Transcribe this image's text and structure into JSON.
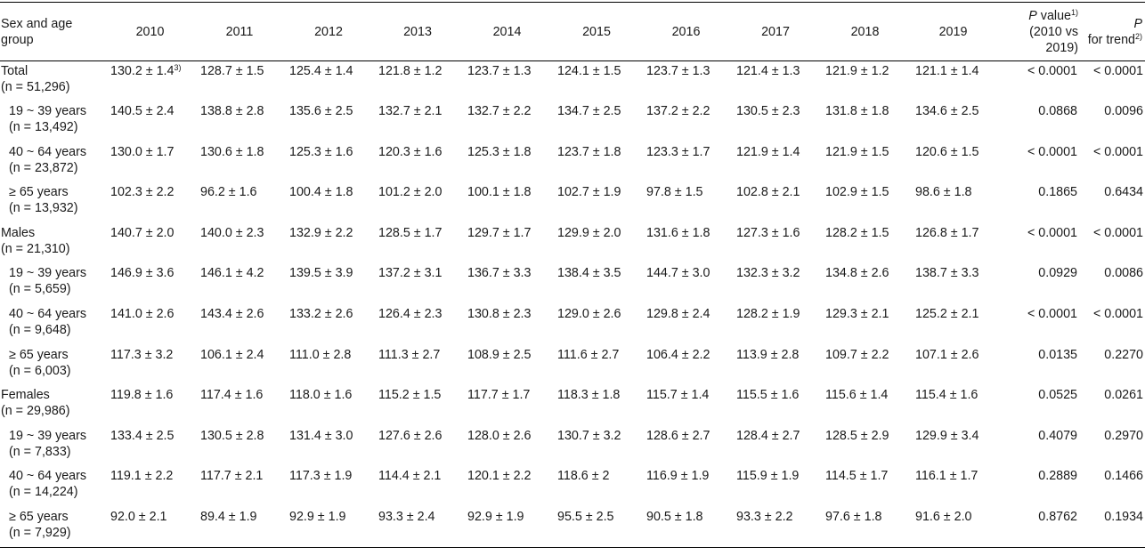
{
  "header": {
    "group_label": "Sex and age group",
    "years": [
      "2010",
      "2011",
      "2012",
      "2013",
      "2014",
      "2015",
      "2016",
      "2017",
      "2018",
      "2019"
    ],
    "pvalue_p": "P",
    "pvalue_text": " value",
    "pvalue_sup": "1)",
    "pvalue_range": "(2010 vs 2019)",
    "trend_p": "P",
    "trend_text": "for trend",
    "trend_sup": "2)"
  },
  "footnote_marker": "3)",
  "rows": [
    {
      "label": "Total",
      "n": "(n = 51,296)",
      "sub": false,
      "values": [
        "130.2 ± 1.4",
        "128.7 ± 1.5",
        "125.4 ± 1.4",
        "121.8 ± 1.2",
        "123.7 ± 1.3",
        "124.1 ± 1.5",
        "123.7 ± 1.3",
        "121.4 ± 1.3",
        "121.9 ± 1.2",
        "121.1 ± 1.4"
      ],
      "p_value": "< 0.0001",
      "p_trend": "< 0.0001"
    },
    {
      "label": "19 ~ 39 years",
      "n": "(n = 13,492)",
      "sub": true,
      "values": [
        "140.5 ± 2.4",
        "138.8 ± 2.8",
        "135.6 ± 2.5",
        "132.7 ± 2.1",
        "132.7 ± 2.2",
        "134.7 ± 2.5",
        "137.2 ± 2.2",
        "130.5 ± 2.3",
        "131.8 ± 1.8",
        "134.6 ± 2.5"
      ],
      "p_value": "0.0868",
      "p_trend": "0.0096"
    },
    {
      "label": "40 ~ 64 years",
      "n": "(n = 23,872)",
      "sub": true,
      "values": [
        "130.0 ± 1.7",
        "130.6 ± 1.8",
        "125.3 ± 1.6",
        "120.3 ± 1.6",
        "125.3 ± 1.8",
        "123.7 ± 1.8",
        "123.3 ± 1.7",
        "121.9 ± 1.4",
        "121.9 ± 1.5",
        "120.6 ± 1.5"
      ],
      "p_value": "< 0.0001",
      "p_trend": "< 0.0001"
    },
    {
      "label": "≥ 65 years",
      "n": "(n = 13,932)",
      "sub": true,
      "values": [
        "102.3 ± 2.2",
        "96.2 ± 1.6",
        "100.4 ± 1.8",
        "101.2 ± 2.0",
        "100.1 ± 1.8",
        "102.7 ± 1.9",
        "97.8 ± 1.5",
        "102.8 ± 2.1",
        "102.9 ± 1.5",
        "98.6 ± 1.8"
      ],
      "p_value": "0.1865",
      "p_trend": "0.6434"
    },
    {
      "label": "Males",
      "n": "(n = 21,310)",
      "sub": false,
      "values": [
        "140.7 ± 2.0",
        "140.0 ± 2.3",
        "132.9 ± 2.2",
        "128.5 ± 1.7",
        "129.7 ± 1.7",
        "129.9 ± 2.0",
        "131.6 ± 1.8",
        "127.3 ± 1.6",
        "128.2 ± 1.5",
        "126.8 ± 1.7"
      ],
      "p_value": "< 0.0001",
      "p_trend": "< 0.0001"
    },
    {
      "label": "19 ~ 39 years",
      "n": "(n = 5,659)",
      "sub": true,
      "values": [
        "146.9 ± 3.6",
        "146.1 ± 4.2",
        "139.5 ± 3.9",
        "137.2 ± 3.1",
        "136.7 ± 3.3",
        "138.4 ± 3.5",
        "144.7 ± 3.0",
        "132.3 ± 3.2",
        "134.8 ± 2.6",
        "138.7 ± 3.3"
      ],
      "p_value": "0.0929",
      "p_trend": "0.0086"
    },
    {
      "label": "40 ~ 64 years",
      "n": "(n = 9,648)",
      "sub": true,
      "values": [
        "141.0 ± 2.6",
        "143.4 ± 2.6",
        "133.2 ± 2.6",
        "126.4 ± 2.3",
        "130.8 ± 2.3",
        "129.0 ± 2.6",
        "129.8 ± 2.4",
        "128.2 ± 1.9",
        "129.3 ± 2.1",
        "125.2 ± 2.1"
      ],
      "p_value": "< 0.0001",
      "p_trend": "< 0.0001"
    },
    {
      "label": "≥ 65 years",
      "n": "(n = 6,003)",
      "sub": true,
      "values": [
        "117.3 ± 3.2",
        "106.1 ± 2.4",
        "111.0 ± 2.8",
        "111.3 ± 2.7",
        "108.9 ± 2.5",
        "111.6 ± 2.7",
        "106.4 ± 2.2",
        "113.9 ± 2.8",
        "109.7 ± 2.2",
        "107.1 ± 2.6"
      ],
      "p_value": "0.0135",
      "p_trend": "0.2270"
    },
    {
      "label": "Females",
      "n": "(n = 29,986)",
      "sub": false,
      "values": [
        "119.8 ± 1.6",
        "117.4 ± 1.6",
        "118.0 ± 1.6",
        "115.2 ± 1.5",
        "117.7 ± 1.7",
        "118.3 ± 1.8",
        "115.7 ± 1.4",
        "115.5 ± 1.6",
        "115.6 ± 1.4",
        "115.4 ± 1.6"
      ],
      "p_value": "0.0525",
      "p_trend": "0.0261"
    },
    {
      "label": "19 ~ 39 years",
      "n": "(n = 7,833)",
      "sub": true,
      "values": [
        "133.4 ± 2.5",
        "130.5 ± 2.8",
        "131.4 ± 3.0",
        "127.6 ± 2.6",
        "128.0 ± 2.6",
        "130.7 ± 3.2",
        "128.6 ± 2.7",
        "128.4 ± 2.7",
        "128.5 ± 2.9",
        "129.9 ± 3.4"
      ],
      "p_value": "0.4079",
      "p_trend": "0.2970"
    },
    {
      "label": "40 ~ 64 years",
      "n": "(n = 14,224)",
      "sub": true,
      "values": [
        "119.1 ± 2.2",
        "117.7 ± 2.1",
        "117.3 ± 1.9",
        "114.4 ± 2.1",
        "120.1 ± 2.2",
        "118.6 ± 2",
        "116.9 ± 1.9",
        "115.9 ± 1.9",
        "114.5 ± 1.7",
        "116.1 ± 1.7"
      ],
      "p_value": "0.2889",
      "p_trend": "0.1466"
    },
    {
      "label": "≥ 65 years",
      "n": "(n = 7,929)",
      "sub": true,
      "values": [
        "92.0 ± 2.1",
        "89.4 ± 1.9",
        "92.9 ± 1.9",
        "93.3 ± 2.4",
        "92.9 ± 1.9",
        "95.5 ± 2.5",
        "90.5 ± 1.8",
        "93.3 ± 2.2",
        "97.6 ± 1.8",
        "91.6 ± 2.0"
      ],
      "p_value": "0.8762",
      "p_trend": "0.1934"
    }
  ]
}
